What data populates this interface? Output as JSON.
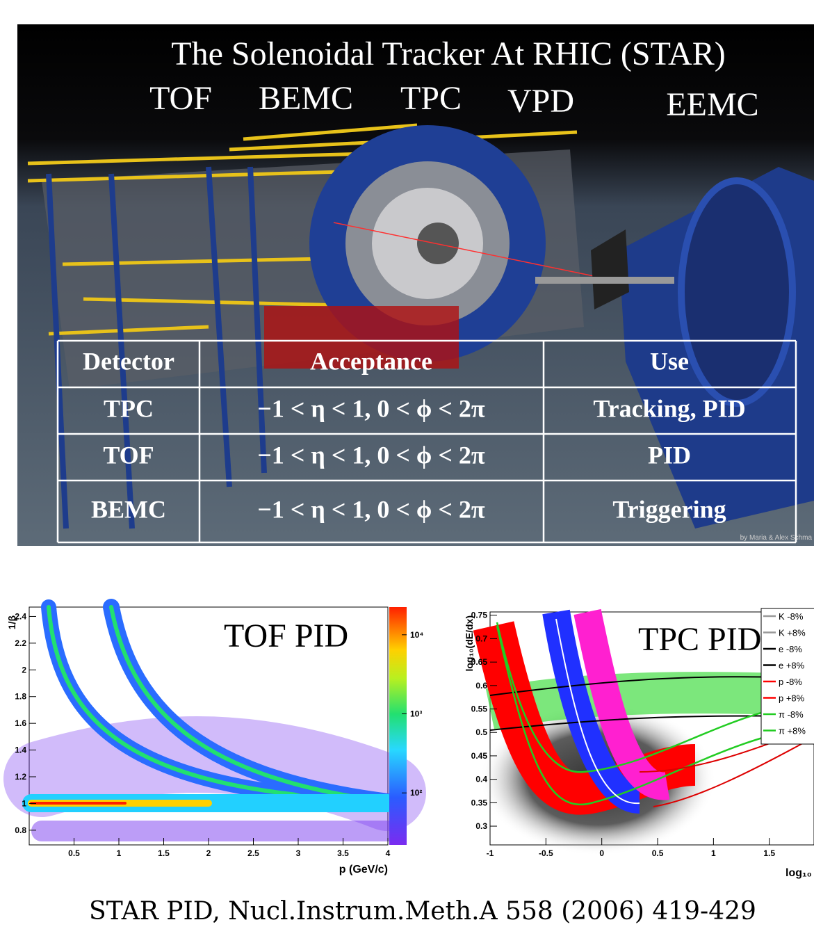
{
  "header": {
    "title": "The Solenoidal Tracker At RHIC (STAR)",
    "labels": [
      "TOF",
      "BEMC",
      "TPC",
      "VPD",
      "EEMC"
    ]
  },
  "image_credit": "by Maria & Alex Schma",
  "table": {
    "header": [
      "Detector",
      "Acceptance",
      "Use"
    ],
    "rows": [
      [
        "TPC",
        "−1 < η < 1, 0 < ϕ < 2π",
        "Tracking, PID"
      ],
      [
        "TOF",
        "−1 < η < 1, 0 < ϕ < 2π",
        "PID"
      ],
      [
        "BEMC",
        "−1 < η < 1, 0 < ϕ < 2π",
        "Triggering"
      ]
    ]
  },
  "plots": [
    {
      "label": "TOF PID",
      "y_axis_label": "1/β",
      "x_axis_label": "p (GeV/c)",
      "xlim": [
        0,
        4
      ],
      "xticks": [
        0.5,
        1,
        1.5,
        2,
        2.5,
        3,
        3.5,
        4
      ],
      "ylim": [
        0.69,
        2.47
      ],
      "yticks": [
        0.8,
        1,
        1.2,
        1.4,
        1.6,
        1.8,
        2,
        2.2,
        2.4
      ],
      "colorbar_lim": [
        22,
        22400
      ],
      "colorbar_log": true,
      "colorbar_ticks": [
        {
          "value": 100,
          "label": "10²"
        },
        {
          "value": 1000,
          "label": "10³"
        },
        {
          "value": 10000,
          "label": "10⁴"
        }
      ]
    },
    {
      "label": "TPC PID",
      "y_axis_label": "log₁₀(dE/dx)",
      "x_axis_label": "log₁₀",
      "xlim": [
        -1,
        1.9
      ],
      "xticks": [
        -1,
        -0.5,
        0,
        0.5,
        1,
        1.5
      ],
      "ylim": [
        0.26,
        0.757
      ],
      "yticks": [
        0.3,
        0.35,
        0.4,
        0.45,
        0.5,
        0.55,
        0.6,
        0.65,
        0.7,
        0.75
      ],
      "legend": [
        {
          "name": "K -8%",
          "color": "#999999"
        },
        {
          "name": "K +8%",
          "color": "#999999"
        },
        {
          "name": "e -8%",
          "color": "#000000"
        },
        {
          "name": "e +8%",
          "color": "#000000"
        },
        {
          "name": "p -8%",
          "color": "#ff0000"
        },
        {
          "name": "p +8%",
          "color": "#ff0000"
        },
        {
          "name": "π -8%",
          "color": "#22cc22"
        },
        {
          "name": "π +8%",
          "color": "#22cc22"
        }
      ]
    }
  ],
  "citation": "STAR PID, Nucl.Instrum.Meth.A 558 (2006) 419-429"
}
